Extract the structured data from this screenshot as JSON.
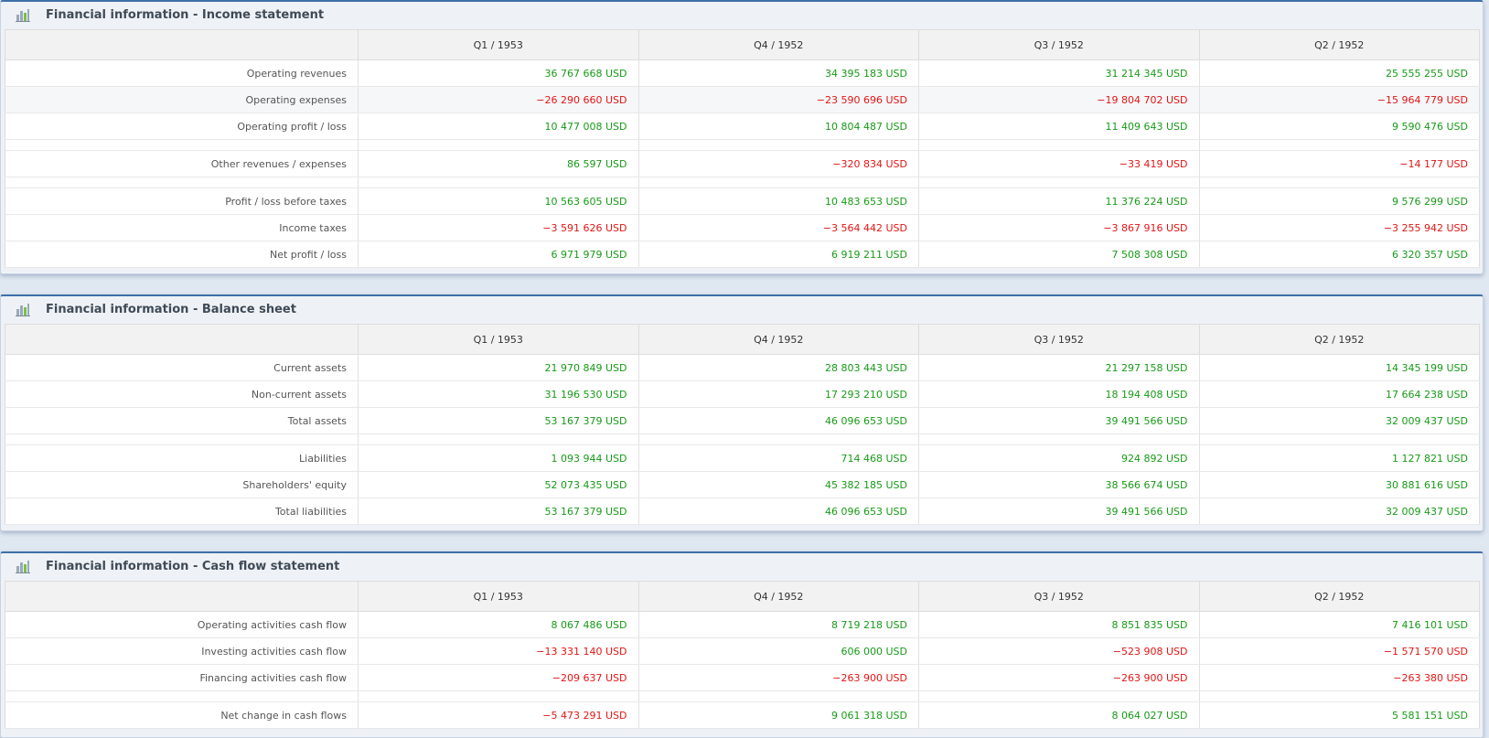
{
  "colors": {
    "positive": "#179a17",
    "negative": "#e51414",
    "accent": "#3e6fa8"
  },
  "columns": [
    "Q1 / 1953",
    "Q4 / 1952",
    "Q3 / 1952",
    "Q2 / 1952"
  ],
  "income": {
    "title": "Financial information - Income statement",
    "icon": "bar-chart-icon",
    "rows": [
      {
        "label": "Operating revenues",
        "values": [
          "36 767 668 USD",
          "34 395 183 USD",
          "31 214 345 USD",
          "25 555 255 USD"
        ]
      },
      {
        "label": "Operating expenses",
        "values": [
          "−26 290 660 USD",
          "−23 590 696 USD",
          "−19 804 702 USD",
          "−15 964 779 USD"
        ]
      },
      {
        "label": "Operating profit / loss",
        "values": [
          "10 477 008 USD",
          "10 804 487 USD",
          "11 409 643 USD",
          "9 590 476 USD"
        ]
      },
      {
        "label": "Other revenues / expenses",
        "values": [
          "86 597 USD",
          "−320 834 USD",
          "−33 419 USD",
          "−14 177 USD"
        ]
      },
      {
        "label": "Profit / loss before taxes",
        "values": [
          "10 563 605 USD",
          "10 483 653 USD",
          "11 376 224 USD",
          "9 576 299 USD"
        ]
      },
      {
        "label": "Income taxes",
        "values": [
          "−3 591 626 USD",
          "−3 564 442 USD",
          "−3 867 916 USD",
          "−3 255 942 USD"
        ]
      },
      {
        "label": "Net profit / loss",
        "values": [
          "6 971 979 USD",
          "6 919 211 USD",
          "7 508 308 USD",
          "6 320 357 USD"
        ]
      }
    ]
  },
  "balance": {
    "title": "Financial information - Balance sheet",
    "icon": "bar-chart-icon",
    "rows": [
      {
        "label": "Current assets",
        "values": [
          "21 970 849 USD",
          "28 803 443 USD",
          "21 297 158 USD",
          "14 345 199 USD"
        ]
      },
      {
        "label": "Non-current assets",
        "values": [
          "31 196 530 USD",
          "17 293 210 USD",
          "18 194 408 USD",
          "17 664 238 USD"
        ]
      },
      {
        "label": "Total assets",
        "values": [
          "53 167 379 USD",
          "46 096 653 USD",
          "39 491 566 USD",
          "32 009 437 USD"
        ]
      },
      {
        "label": "Liabilities",
        "values": [
          "1 093 944 USD",
          "714 468 USD",
          "924 892 USD",
          "1 127 821 USD"
        ]
      },
      {
        "label": "Shareholders' equity",
        "values": [
          "52 073 435 USD",
          "45 382 185 USD",
          "38 566 674 USD",
          "30 881 616 USD"
        ]
      },
      {
        "label": "Total liabilities",
        "values": [
          "53 167 379 USD",
          "46 096 653 USD",
          "39 491 566 USD",
          "32 009 437 USD"
        ]
      }
    ]
  },
  "cashflow": {
    "title": "Financial information - Cash flow statement",
    "icon": "bar-chart-icon",
    "rows": [
      {
        "label": "Operating activities cash flow",
        "values": [
          "8 067 486 USD",
          "8 719 218 USD",
          "8 851 835 USD",
          "7 416 101 USD"
        ]
      },
      {
        "label": "Investing activities cash flow",
        "values": [
          "−13 331 140 USD",
          "606 000 USD",
          "−523 908 USD",
          "−1 571 570 USD"
        ]
      },
      {
        "label": "Financing activities cash flow",
        "values": [
          "−209 637 USD",
          "−263 900 USD",
          "−263 900 USD",
          "−263 380 USD"
        ]
      },
      {
        "label": "Net change in cash flows",
        "values": [
          "−5 473 291 USD",
          "9 061 318 USD",
          "8 064 027 USD",
          "5 581 151 USD"
        ]
      }
    ]
  }
}
